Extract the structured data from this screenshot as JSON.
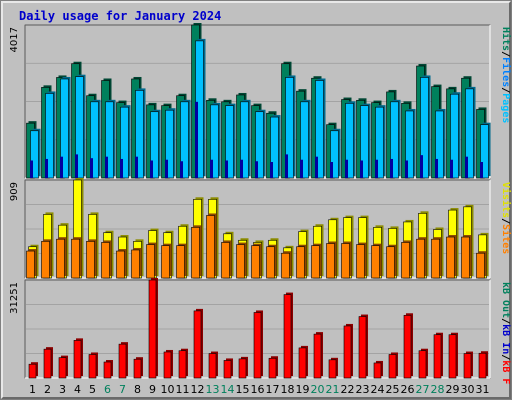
{
  "title": "Daily usage for January 2024",
  "colors": {
    "hits": "#00805c",
    "files": "#00c0ff",
    "pages": "#00c0ff",
    "visits": "#ffff00",
    "sites": "#ff8000",
    "kbin": "#ff0000",
    "weekend_label": "#00805c",
    "weekday_label": "#000000"
  },
  "chart_data": [
    {
      "type": "bar",
      "panel": "hits-files-pages",
      "title": "Daily usage for January 2024",
      "ylabel_max": "4017",
      "ylim": [
        0,
        4017
      ],
      "grid": true,
      "legend": [
        "Pages",
        "/",
        "Files",
        "/",
        "Hits"
      ],
      "categories": [
        "1",
        "2",
        "3",
        "4",
        "5",
        "6",
        "7",
        "8",
        "9",
        "10",
        "11",
        "12",
        "13",
        "14",
        "15",
        "16",
        "17",
        "18",
        "19",
        "20",
        "21",
        "22",
        "23",
        "24",
        "25",
        "26",
        "27",
        "28",
        "29",
        "30",
        "31"
      ],
      "series": [
        {
          "name": "Hits",
          "values": [
            1440,
            2380,
            2640,
            3000,
            2160,
            2560,
            1980,
            2600,
            1920,
            1900,
            2160,
            4017,
            2040,
            2000,
            2180,
            1900,
            1700,
            3000,
            2280,
            2620,
            1400,
            2060,
            2040,
            1980,
            2260,
            1960,
            2940,
            2400,
            2340,
            2620,
            1800
          ]
        },
        {
          "name": "Files",
          "values": [
            1240,
            2220,
            2600,
            2660,
            2000,
            2000,
            1860,
            2300,
            1740,
            1780,
            2000,
            3600,
            1920,
            1900,
            2000,
            1740,
            1600,
            2640,
            2000,
            2560,
            1240,
            1960,
            1900,
            1860,
            2000,
            1760,
            2640,
            1760,
            2200,
            2340,
            1400
          ]
        },
        {
          "name": "Pages",
          "values": [
            460,
            500,
            560,
            620,
            520,
            560,
            500,
            560,
            460,
            480,
            440,
            2000,
            480,
            460,
            480,
            440,
            420,
            620,
            480,
            560,
            420,
            480,
            460,
            480,
            500,
            460,
            600,
            500,
            480,
            560,
            420
          ]
        }
      ]
    },
    {
      "type": "bar",
      "panel": "visits-sites",
      "ylabel_max": "909",
      "ylim": [
        0,
        909
      ],
      "grid": true,
      "legend": [
        "Sites",
        "/",
        "Visits"
      ],
      "categories": [
        "1",
        "2",
        "3",
        "4",
        "5",
        "6",
        "7",
        "8",
        "9",
        "10",
        "11",
        "12",
        "13",
        "14",
        "15",
        "16",
        "17",
        "18",
        "19",
        "20",
        "21",
        "22",
        "23",
        "24",
        "25",
        "26",
        "27",
        "28",
        "29",
        "30",
        "31"
      ],
      "series": [
        {
          "name": "Visits",
          "values": [
            290,
            590,
            490,
            909,
            590,
            420,
            380,
            340,
            440,
            420,
            480,
            730,
            730,
            410,
            350,
            330,
            350,
            280,
            430,
            480,
            540,
            560,
            560,
            470,
            460,
            520,
            600,
            450,
            630,
            660,
            400
          ]
        },
        {
          "name": "Sites",
          "values": [
            250,
            340,
            360,
            360,
            340,
            330,
            250,
            260,
            310,
            300,
            300,
            470,
            580,
            330,
            310,
            300,
            290,
            230,
            290,
            300,
            320,
            320,
            310,
            300,
            290,
            330,
            360,
            360,
            380,
            380,
            230
          ]
        }
      ]
    },
    {
      "type": "bar",
      "panel": "kb",
      "ylabel_max": "31251",
      "ylim": [
        0,
        31251
      ],
      "grid": true,
      "legend": [
        "kB F",
        "/",
        "kB In",
        "/",
        "kB Out"
      ],
      "categories": [
        "1",
        "2",
        "3",
        "4",
        "5",
        "6",
        "7",
        "8",
        "9",
        "10",
        "11",
        "12",
        "13",
        "14",
        "15",
        "16",
        "17",
        "18",
        "19",
        "20",
        "21",
        "22",
        "23",
        "24",
        "25",
        "26",
        "27",
        "28",
        "29",
        "30",
        "31"
      ],
      "series": [
        {
          "name": "kB F",
          "values": [
            4400,
            9200,
            6500,
            12000,
            7500,
            5100,
            10800,
            6000,
            31251,
            8300,
            8700,
            21400,
            7800,
            5600,
            6100,
            20900,
            6300,
            26600,
            9600,
            14000,
            5800,
            16600,
            19600,
            4800,
            7500,
            20000,
            8700,
            13800,
            13800,
            7800,
            7900
          ]
        }
      ]
    }
  ],
  "y_labels": {
    "panel1_right": [
      "Pages",
      "/",
      "Files",
      "/",
      "Hits"
    ],
    "panel2_right": [
      "Sites",
      "/",
      "Visits"
    ],
    "panel3_right": [
      "kB F",
      "/",
      "kB In",
      "/",
      "kB Out"
    ]
  },
  "weekend_days": [
    "6",
    "7",
    "13",
    "14",
    "20",
    "21",
    "27",
    "28"
  ]
}
